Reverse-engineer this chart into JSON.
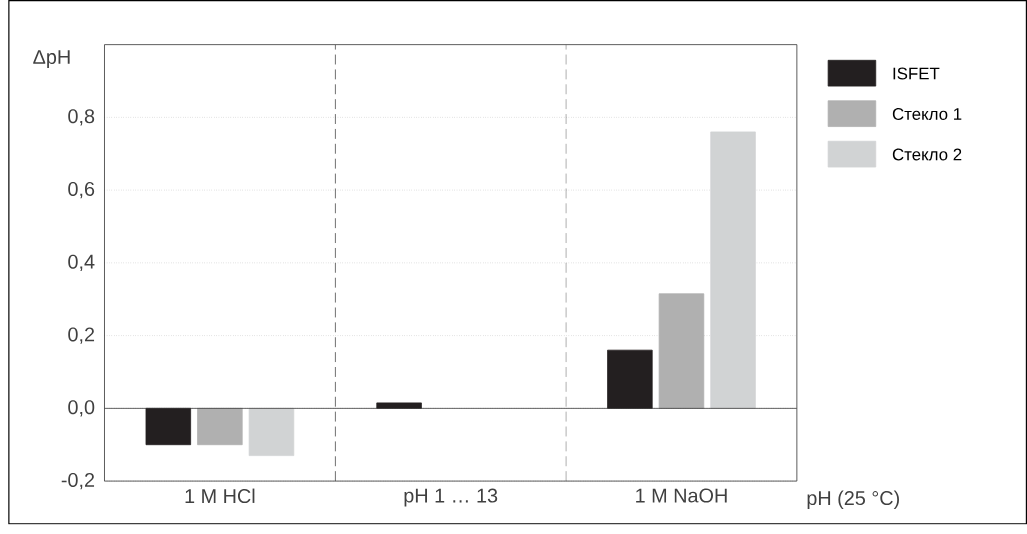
{
  "chart_data": {
    "type": "bar",
    "ylabel": "ΔpH",
    "xlabel": "pH (25 °C)",
    "categories": [
      "1 M HCl",
      "pH 1 … 13",
      "1 M NaOH"
    ],
    "series": [
      {
        "name": "ISFET",
        "color": "#231f20",
        "values": [
          -0.1,
          0.015,
          0.16
        ]
      },
      {
        "name": "Стекло 1",
        "color": "#b0b0b0",
        "values": [
          -0.1,
          null,
          0.315
        ]
      },
      {
        "name": "Стекло 2",
        "color": "#d1d3d4",
        "values": [
          -0.13,
          null,
          0.76
        ]
      }
    ],
    "ylim": [
      -0.2,
      1.0
    ],
    "yticks": [
      {
        "value": -0.2,
        "label": "-0,2"
      },
      {
        "value": 0.0,
        "label": "0,0"
      },
      {
        "value": 0.2,
        "label": "0,2"
      },
      {
        "value": 0.4,
        "label": "0,4"
      },
      {
        "value": 0.6,
        "label": "0,6"
      },
      {
        "value": 0.8,
        "label": "0,8"
      }
    ],
    "grid": "y",
    "legend": "top right"
  }
}
